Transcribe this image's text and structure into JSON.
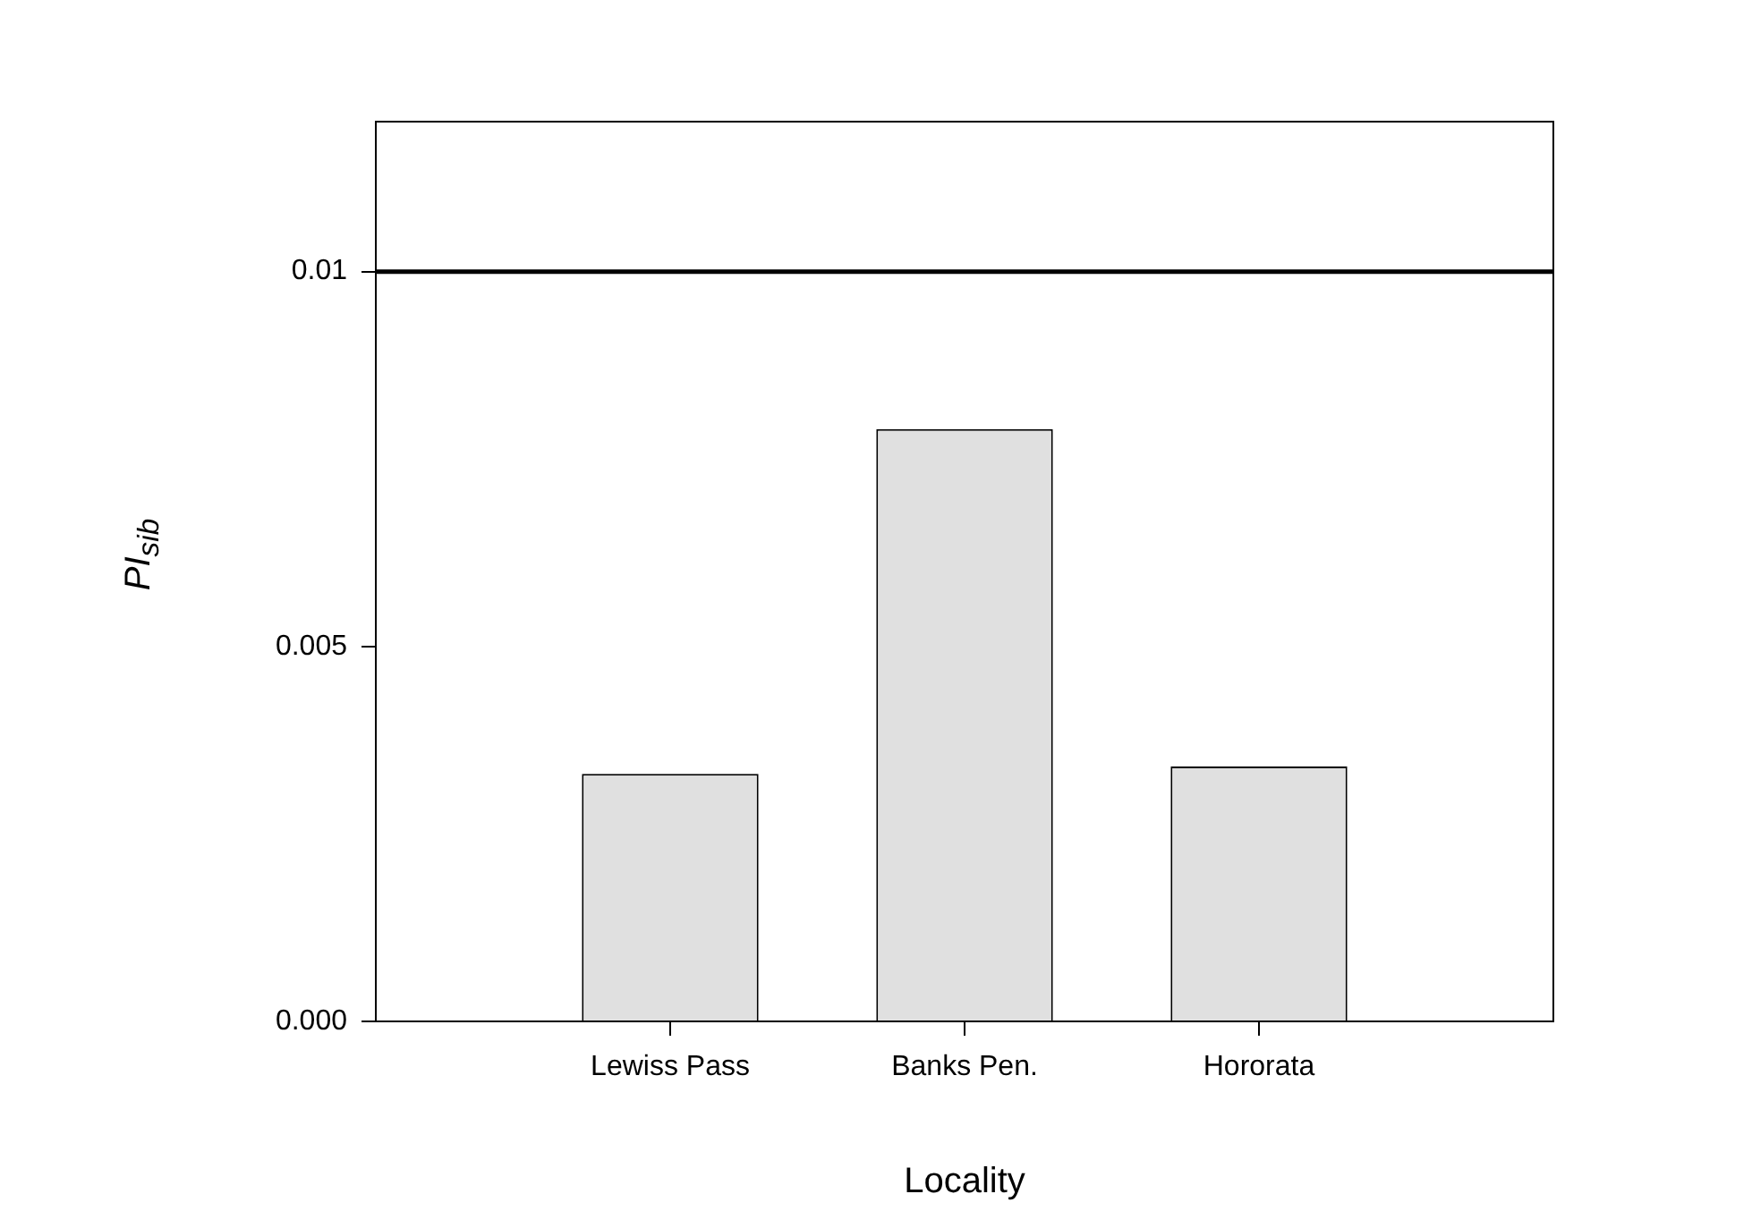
{
  "chart_data": {
    "type": "bar",
    "xlabel": "Locality",
    "ylabel": "PI$_{sib}$",
    "categories": [
      "Lewiss Pass",
      "Banks Pen.",
      "Hororata"
    ],
    "values": [
      0.0033,
      0.0079,
      0.0034
    ],
    "color": "#e0e0e0",
    "ylim": [
      0,
      0.012
    ],
    "yticks": [
      {
        "value": 0,
        "label": "0.000"
      },
      {
        "value": 0.005,
        "label": "0.005"
      },
      {
        "value": 0.01,
        "label": "0.01"
      }
    ],
    "ref_lines": [
      {
        "axis": "y",
        "value": 0.01,
        "color": "#000000"
      }
    ],
    "grid": false,
    "legend": false
  }
}
